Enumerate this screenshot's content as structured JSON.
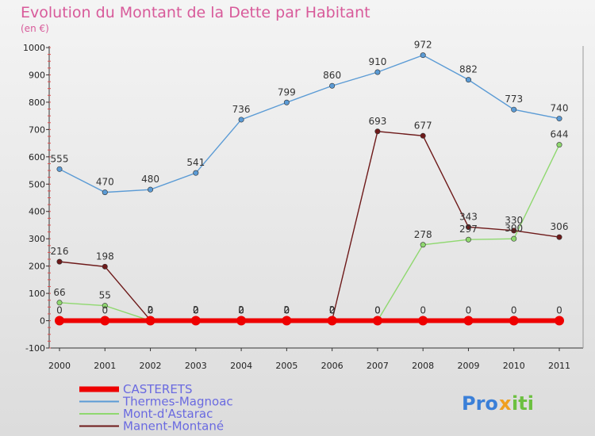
{
  "chart_data": {
    "type": "line",
    "title": "Evolution du Montant de la Dette par Habitant",
    "subtitle": "(en €)",
    "x": [
      "2000",
      "2001",
      "2002",
      "2003",
      "2004",
      "2005",
      "2006",
      "2007",
      "2008",
      "2009",
      "2010",
      "2011"
    ],
    "ylim": [
      -100,
      1000
    ],
    "yticks": [
      -100,
      0,
      100,
      200,
      300,
      400,
      500,
      600,
      700,
      800,
      900,
      1000
    ],
    "grid": false,
    "legend_position": "bottom-left",
    "series": [
      {
        "name": "CASTERETS",
        "color": "#ee0000",
        "values": [
          0,
          0,
          0,
          0,
          0,
          0,
          0,
          0,
          0,
          0,
          0,
          0
        ],
        "labels": [
          "0",
          "0",
          "0",
          "0",
          "0",
          "0",
          "0",
          "0",
          "0",
          "0",
          "0",
          "0"
        ]
      },
      {
        "name": "Thermes-Magnoac",
        "color": "#5b9bd5",
        "values": [
          555,
          470,
          480,
          541,
          736,
          799,
          860,
          910,
          972,
          882,
          773,
          740
        ],
        "labels": [
          "555",
          "470",
          "480",
          "541",
          "736",
          "799",
          "860",
          "910",
          "972",
          "882",
          "773",
          "740"
        ]
      },
      {
        "name": "Mont-d'Astarac",
        "color": "#8fd86f",
        "values": [
          66,
          55,
          0,
          0,
          0,
          0,
          0,
          0,
          278,
          297,
          300,
          644
        ],
        "labels": [
          "66",
          "55",
          "0",
          "0",
          "0",
          "0",
          "0",
          "0",
          "278",
          "297",
          "300",
          "644"
        ]
      },
      {
        "name": "Manent-Montané",
        "color": "#6e1a1a",
        "values": [
          216,
          198,
          2,
          2,
          2,
          2,
          2,
          693,
          677,
          343,
          330,
          306
        ],
        "labels": [
          "216",
          "198",
          "2",
          "2",
          "2",
          "2",
          "2",
          "693",
          "677",
          "343",
          "330",
          "306"
        ]
      }
    ],
    "brand": "Proxiti"
  }
}
